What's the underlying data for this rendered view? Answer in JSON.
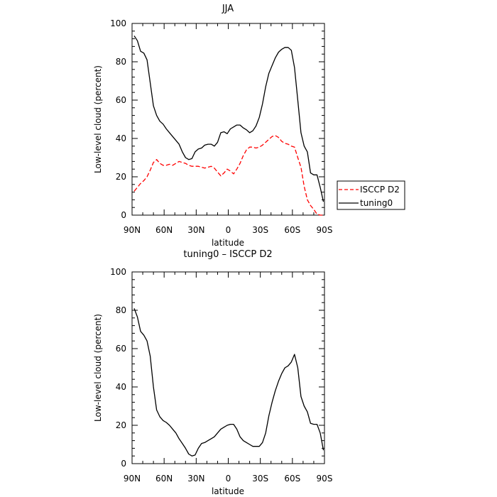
{
  "chart_data": [
    {
      "type": "line",
      "title": "JJA",
      "xlabel": "latitude",
      "ylabel": "Low-level cloud (percent)",
      "xlim": [
        90,
        -90
      ],
      "ylim": [
        0,
        100
      ],
      "xticks": [
        90,
        60,
        30,
        0,
        -30,
        -60,
        -90
      ],
      "xtick_labels": [
        "90N",
        "60N",
        "30N",
        "0",
        "30S",
        "60S",
        "90S"
      ],
      "yticks": [
        0,
        20,
        40,
        60,
        80,
        100
      ],
      "ytick_labels": [
        "0",
        "20",
        "40",
        "60",
        "80",
        "100"
      ],
      "legend_position": "right, outside plot",
      "series": [
        {
          "name": "ISCCP D2",
          "color": "#ff0000",
          "dash": "dashed",
          "x": [
            88,
            85,
            82,
            79,
            76,
            73,
            70,
            67,
            64,
            61,
            58,
            55,
            52,
            49,
            46,
            43,
            40,
            37,
            34,
            31,
            28,
            25,
            22,
            19,
            16,
            13,
            10,
            7,
            4,
            1,
            -2,
            -5,
            -8,
            -11,
            -14,
            -17,
            -20,
            -23,
            -26,
            -29,
            -32,
            -35,
            -38,
            -41,
            -44,
            -47,
            -50,
            -53,
            -56,
            -59,
            -62,
            -65,
            -68,
            -71,
            -74,
            -77,
            -80,
            -83,
            -86,
            -89
          ],
          "y": [
            12.5,
            14.5,
            16.5,
            18,
            20,
            23.5,
            27.5,
            29,
            27,
            26,
            26,
            26.5,
            26,
            27,
            28,
            27.5,
            27,
            26,
            25.5,
            25.5,
            25.5,
            25,
            24.5,
            25,
            25.5,
            24.5,
            22.5,
            20.5,
            22,
            24,
            23,
            21.5,
            24,
            27,
            31,
            34,
            35.5,
            35.5,
            35,
            35.5,
            36.5,
            38,
            39.5,
            41,
            41.5,
            40.5,
            38.5,
            37.5,
            37,
            36,
            35.5,
            30,
            25,
            15,
            8,
            5,
            3,
            0.5,
            0,
            0
          ]
        },
        {
          "name": "tuning0",
          "color": "#000000",
          "dash": "solid",
          "x": [
            88,
            85,
            82,
            79,
            76,
            73,
            70,
            67,
            64,
            61,
            58,
            55,
            52,
            49,
            46,
            43,
            40,
            37,
            34,
            31,
            28,
            25,
            22,
            19,
            16,
            13,
            10,
            7,
            4,
            1,
            -2,
            -5,
            -8,
            -11,
            -14,
            -17,
            -20,
            -23,
            -26,
            -29,
            -32,
            -35,
            -38,
            -41,
            -44,
            -47,
            -50,
            -53,
            -56,
            -59,
            -62,
            -65,
            -68,
            -71,
            -74,
            -77,
            -80,
            -83,
            -86,
            -89
          ],
          "y": [
            93.5,
            91,
            85.5,
            84.5,
            81,
            69,
            57,
            52,
            49,
            47.5,
            45,
            43,
            41,
            39,
            37,
            33,
            30,
            29,
            29.5,
            33,
            34.5,
            35,
            36.5,
            37,
            37,
            36,
            38,
            43,
            43.5,
            42.5,
            45,
            46,
            47,
            47,
            45.5,
            44.5,
            43,
            44,
            46.5,
            51,
            58,
            67,
            74,
            78,
            82,
            85,
            86.5,
            87.5,
            87.5,
            86,
            77,
            60,
            43,
            36,
            33,
            22,
            21,
            21,
            14.5,
            7
          ]
        }
      ]
    },
    {
      "type": "line",
      "title": "tuning0 – ISCCP D2",
      "xlabel": "latitude",
      "ylabel": "Low-level cloud (percent)",
      "xlim": [
        90,
        -90
      ],
      "ylim": [
        0,
        100
      ],
      "xticks": [
        90,
        60,
        30,
        0,
        -30,
        -60,
        -90
      ],
      "xtick_labels": [
        "90N",
        "60N",
        "30N",
        "0",
        "30S",
        "60S",
        "90S"
      ],
      "yticks": [
        0,
        20,
        40,
        60,
        80,
        100
      ],
      "ytick_labels": [
        "0",
        "20",
        "40",
        "60",
        "80",
        "100"
      ],
      "series": [
        {
          "color": "#000000",
          "dash": "solid",
          "x": [
            88,
            85,
            82,
            79,
            76,
            73,
            70,
            67,
            64,
            61,
            58,
            55,
            52,
            49,
            46,
            43,
            40,
            37,
            34,
            31,
            28,
            25,
            22,
            19,
            16,
            13,
            10,
            7,
            4,
            1,
            -2,
            -5,
            -8,
            -11,
            -14,
            -17,
            -20,
            -23,
            -26,
            -29,
            -32,
            -35,
            -38,
            -41,
            -44,
            -47,
            -50,
            -53,
            -56,
            -59,
            -62,
            -65,
            -68,
            -71,
            -74,
            -77,
            -80,
            -83,
            -86,
            -89
          ],
          "y": [
            81,
            76.5,
            69,
            67,
            64,
            56,
            40,
            28,
            24.5,
            22.5,
            21.5,
            20,
            18,
            16,
            13,
            10.5,
            8,
            5,
            4,
            4.5,
            8,
            10.5,
            11,
            12,
            13,
            14,
            16,
            18,
            19,
            20,
            20.5,
            20.5,
            18,
            14,
            12,
            11,
            10,
            9,
            9,
            9,
            11,
            16,
            25,
            32,
            38,
            43,
            47,
            50,
            51,
            53,
            57,
            50,
            35,
            30,
            27,
            21,
            20.5,
            20.5,
            16,
            7
          ]
        }
      ]
    }
  ]
}
